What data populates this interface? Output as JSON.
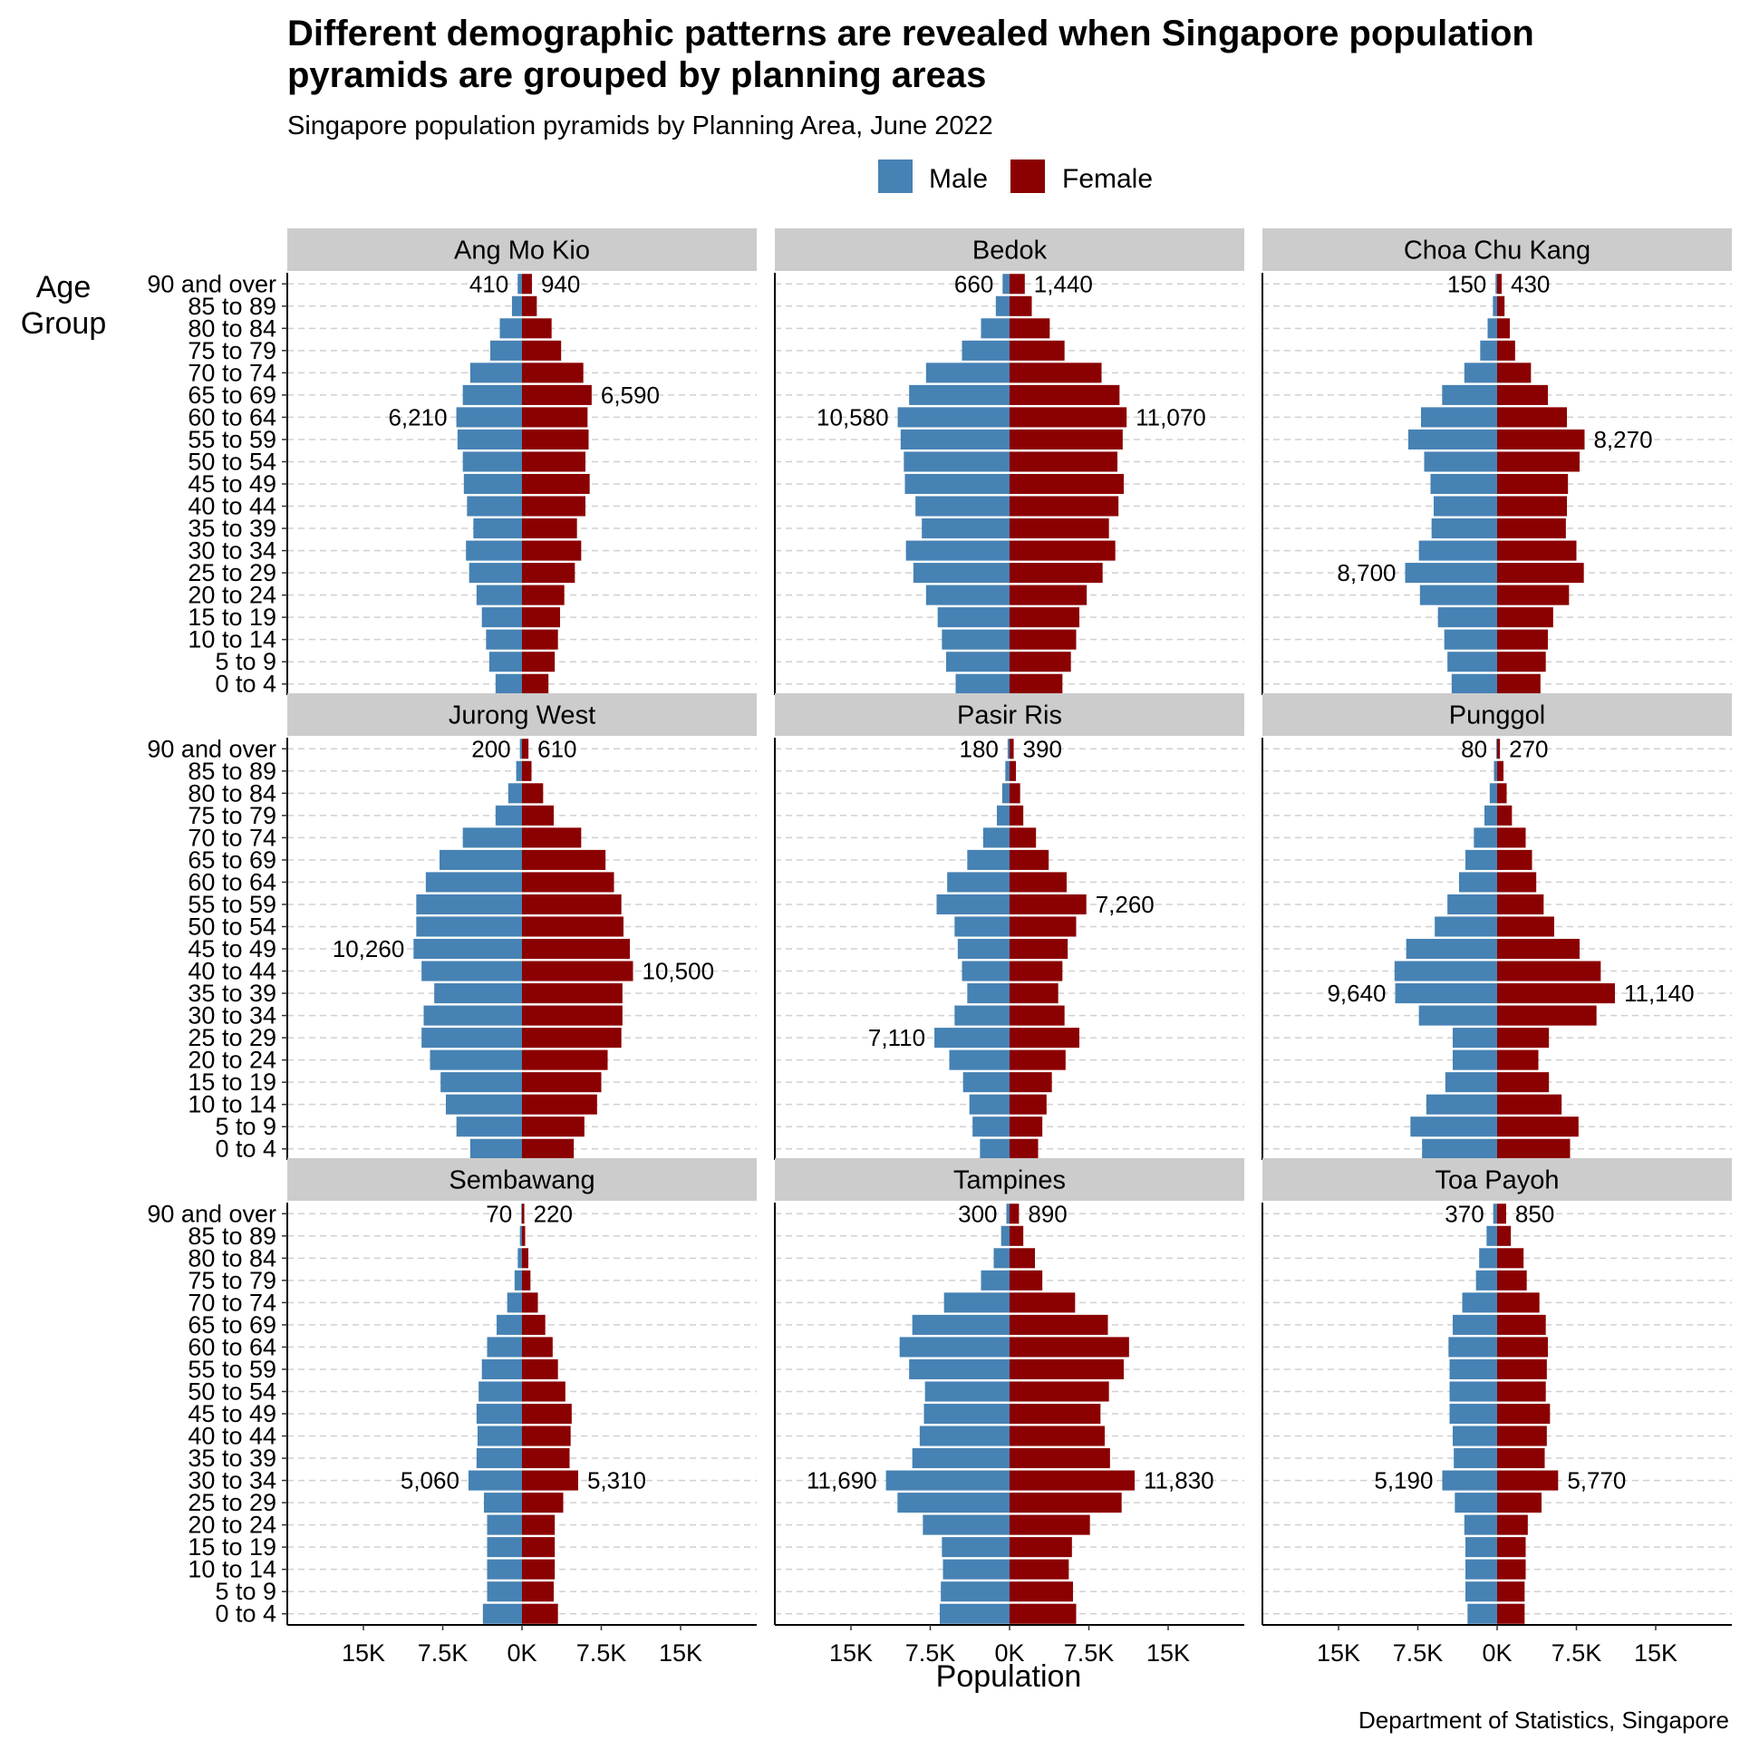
{
  "chart_data": {
    "type": "bar",
    "orientation": "horizontal-diverging",
    "title_line1": "Different demographic patterns are revealed when Singapore population",
    "title_line2": "pyramids are grouped by planning areas",
    "subtitle": "Singapore population pyramids by Planning Area, June 2022",
    "caption": "Department of Statistics, Singapore",
    "ylabel_line1": "Age",
    "ylabel_line2": "Group",
    "xlabel": "Population",
    "legend": {
      "placement": "top",
      "items": [
        {
          "label": "Male",
          "color": "#4682B4"
        },
        {
          "label": "Female",
          "color": "#8B0000"
        }
      ]
    },
    "xlim": [
      -15000,
      15000
    ],
    "x_ticks": [
      {
        "value": -15000,
        "label": "15K"
      },
      {
        "value": -7500,
        "label": "7.5K"
      },
      {
        "value": 0,
        "label": "0K"
      },
      {
        "value": 7500,
        "label": "7.5K"
      },
      {
        "value": 15000,
        "label": "15K"
      }
    ],
    "age_groups": [
      "0 to 4",
      "5 to 9",
      "10 to 14",
      "15 to 19",
      "20 to 24",
      "25 to 29",
      "30 to 34",
      "35 to 39",
      "40 to 44",
      "45 to 49",
      "50 to 54",
      "55 to 59",
      "60 to 64",
      "65 to 69",
      "70 to 74",
      "75 to 79",
      "80 to 84",
      "85 to 89",
      "90 and over"
    ],
    "grid": {
      "horizontal": true,
      "style": "dashed"
    },
    "panels": [
      {
        "name": "Ang Mo Kio",
        "male": [
          2500,
          3100,
          3400,
          3800,
          4300,
          5000,
          5300,
          4600,
          5200,
          5500,
          5600,
          6100,
          6210,
          5600,
          4900,
          3000,
          2100,
          950,
          410
        ],
        "female": [
          2500,
          3100,
          3400,
          3600,
          4000,
          5000,
          5600,
          5200,
          6000,
          6400,
          6000,
          6300,
          6200,
          6590,
          5800,
          3700,
          2800,
          1400,
          940
        ],
        "annotations": [
          {
            "side": "male",
            "age": "90 and over",
            "label": "410"
          },
          {
            "side": "female",
            "age": "90 and over",
            "label": "940"
          },
          {
            "side": "male",
            "age": "60 to 64",
            "label": "6,210"
          },
          {
            "side": "female",
            "age": "65 to 69",
            "label": "6,590"
          }
        ]
      },
      {
        "name": "Bedok",
        "male": [
          5100,
          6000,
          6400,
          6800,
          7900,
          9100,
          9800,
          8300,
          8900,
          9900,
          10000,
          10300,
          10580,
          9500,
          7900,
          4500,
          2700,
          1300,
          660
        ],
        "female": [
          5000,
          5800,
          6300,
          6600,
          7300,
          8800,
          10000,
          9400,
          10300,
          10800,
          10200,
          10700,
          11070,
          10400,
          8700,
          5200,
          3800,
          2100,
          1440
        ],
        "annotations": [
          {
            "side": "male",
            "age": "90 and over",
            "label": "660"
          },
          {
            "side": "female",
            "age": "90 and over",
            "label": "1,440"
          },
          {
            "side": "male",
            "age": "60 to 64",
            "label": "10,580"
          },
          {
            "side": "female",
            "age": "60 to 64",
            "label": "11,070"
          }
        ]
      },
      {
        "name": "Choa Chu Kang",
        "male": [
          4300,
          4700,
          5000,
          5600,
          7300,
          8700,
          7400,
          6200,
          6000,
          6300,
          6900,
          8400,
          7200,
          5200,
          3100,
          1600,
          900,
          400,
          150
        ],
        "female": [
          4100,
          4600,
          4800,
          5300,
          6800,
          8200,
          7500,
          6500,
          6600,
          6700,
          7800,
          8270,
          6600,
          4800,
          3200,
          1700,
          1200,
          700,
          430
        ],
        "annotations": [
          {
            "side": "male",
            "age": "90 and over",
            "label": "150"
          },
          {
            "side": "female",
            "age": "90 and over",
            "label": "430"
          },
          {
            "side": "female",
            "age": "55 to 59",
            "label": "8,270"
          },
          {
            "side": "male",
            "age": "25 to 29",
            "label": "8,700"
          }
        ]
      },
      {
        "name": "Jurong West",
        "male": [
          4900,
          6200,
          7200,
          7700,
          8700,
          9500,
          9300,
          8300,
          9500,
          10260,
          10000,
          10000,
          9100,
          7800,
          5600,
          2500,
          1300,
          550,
          200
        ],
        "female": [
          4900,
          5900,
          7100,
          7500,
          8100,
          9400,
          9500,
          9500,
          10500,
          10200,
          9600,
          9400,
          8700,
          7900,
          5600,
          3000,
          2000,
          900,
          610
        ],
        "annotations": [
          {
            "side": "male",
            "age": "90 and over",
            "label": "200"
          },
          {
            "side": "female",
            "age": "90 and over",
            "label": "610"
          },
          {
            "side": "male",
            "age": "45 to 49",
            "label": "10,260"
          },
          {
            "side": "female",
            "age": "40 to 44",
            "label": "10,500"
          }
        ]
      },
      {
        "name": "Pasir Ris",
        "male": [
          2800,
          3500,
          3800,
          4400,
          5700,
          7110,
          5200,
          4000,
          4500,
          4900,
          5200,
          6900,
          5900,
          4000,
          2500,
          1200,
          700,
          400,
          180
        ],
        "female": [
          2700,
          3100,
          3500,
          4000,
          5300,
          6600,
          5200,
          4600,
          5000,
          5500,
          6300,
          7260,
          5400,
          3700,
          2500,
          1300,
          1000,
          600,
          390
        ],
        "annotations": [
          {
            "side": "male",
            "age": "90 and over",
            "label": "180"
          },
          {
            "side": "female",
            "age": "90 and over",
            "label": "390"
          },
          {
            "side": "female",
            "age": "55 to 59",
            "label": "7,260"
          },
          {
            "side": "male",
            "age": "25 to 29",
            "label": "7,110"
          }
        ]
      },
      {
        "name": "Punggol",
        "male": [
          7100,
          8200,
          6700,
          4900,
          4200,
          4200,
          7400,
          9640,
          9700,
          8600,
          5900,
          4700,
          3600,
          3000,
          2200,
          1200,
          700,
          300,
          80
        ],
        "female": [
          6900,
          7700,
          6100,
          4900,
          3900,
          4900,
          9400,
          11140,
          9800,
          7800,
          5400,
          4400,
          3700,
          3300,
          2700,
          1400,
          900,
          600,
          270
        ],
        "annotations": [
          {
            "side": "male",
            "age": "90 and over",
            "label": "80"
          },
          {
            "side": "female",
            "age": "90 and over",
            "label": "270"
          },
          {
            "side": "male",
            "age": "35 to 39",
            "label": "9,640"
          },
          {
            "side": "female",
            "age": "35 to 39",
            "label": "11,140"
          }
        ]
      },
      {
        "name": "Sembawang",
        "male": [
          3700,
          3300,
          3300,
          3300,
          3300,
          3600,
          5060,
          4300,
          4200,
          4300,
          4100,
          3800,
          3300,
          2400,
          1400,
          700,
          400,
          200,
          70
        ],
        "female": [
          3400,
          3000,
          3100,
          3100,
          3100,
          3900,
          5310,
          4500,
          4600,
          4700,
          4100,
          3400,
          2900,
          2200,
          1500,
          800,
          600,
          300,
          220
        ],
        "annotations": [
          {
            "side": "male",
            "age": "90 and over",
            "label": "70"
          },
          {
            "side": "female",
            "age": "90 and over",
            "label": "220"
          },
          {
            "side": "male",
            "age": "30 to 34",
            "label": "5,060"
          },
          {
            "side": "female",
            "age": "30 to 34",
            "label": "5,310"
          }
        ]
      },
      {
        "name": "Tampines",
        "male": [
          6600,
          6500,
          6300,
          6400,
          8200,
          10600,
          11690,
          9200,
          8500,
          8100,
          8000,
          9500,
          10400,
          9200,
          6200,
          2700,
          1500,
          800,
          300
        ],
        "female": [
          6300,
          6000,
          5600,
          5900,
          7600,
          10600,
          11830,
          9500,
          9000,
          8600,
          9400,
          10800,
          11300,
          9300,
          6200,
          3100,
          2400,
          1300,
          890
        ],
        "annotations": [
          {
            "side": "male",
            "age": "90 and over",
            "label": "300"
          },
          {
            "side": "female",
            "age": "90 and over",
            "label": "890"
          },
          {
            "side": "male",
            "age": "30 to 34",
            "label": "11,690"
          },
          {
            "side": "female",
            "age": "30 to 34",
            "label": "11,830"
          }
        ]
      },
      {
        "name": "Toa Payoh",
        "male": [
          2800,
          3000,
          3000,
          3000,
          3100,
          4000,
          5190,
          4100,
          4200,
          4500,
          4500,
          4500,
          4600,
          4200,
          3300,
          2000,
          1700,
          1000,
          370
        ],
        "female": [
          2600,
          2600,
          2700,
          2700,
          2900,
          4200,
          5770,
          4500,
          4700,
          5000,
          4600,
          4700,
          4800,
          4600,
          4000,
          2800,
          2500,
          1300,
          850
        ],
        "annotations": [
          {
            "side": "male",
            "age": "90 and over",
            "label": "370"
          },
          {
            "side": "female",
            "age": "90 and over",
            "label": "850"
          },
          {
            "side": "male",
            "age": "30 to 34",
            "label": "5,190"
          },
          {
            "side": "female",
            "age": "30 to 34",
            "label": "5,770"
          }
        ]
      }
    ]
  }
}
